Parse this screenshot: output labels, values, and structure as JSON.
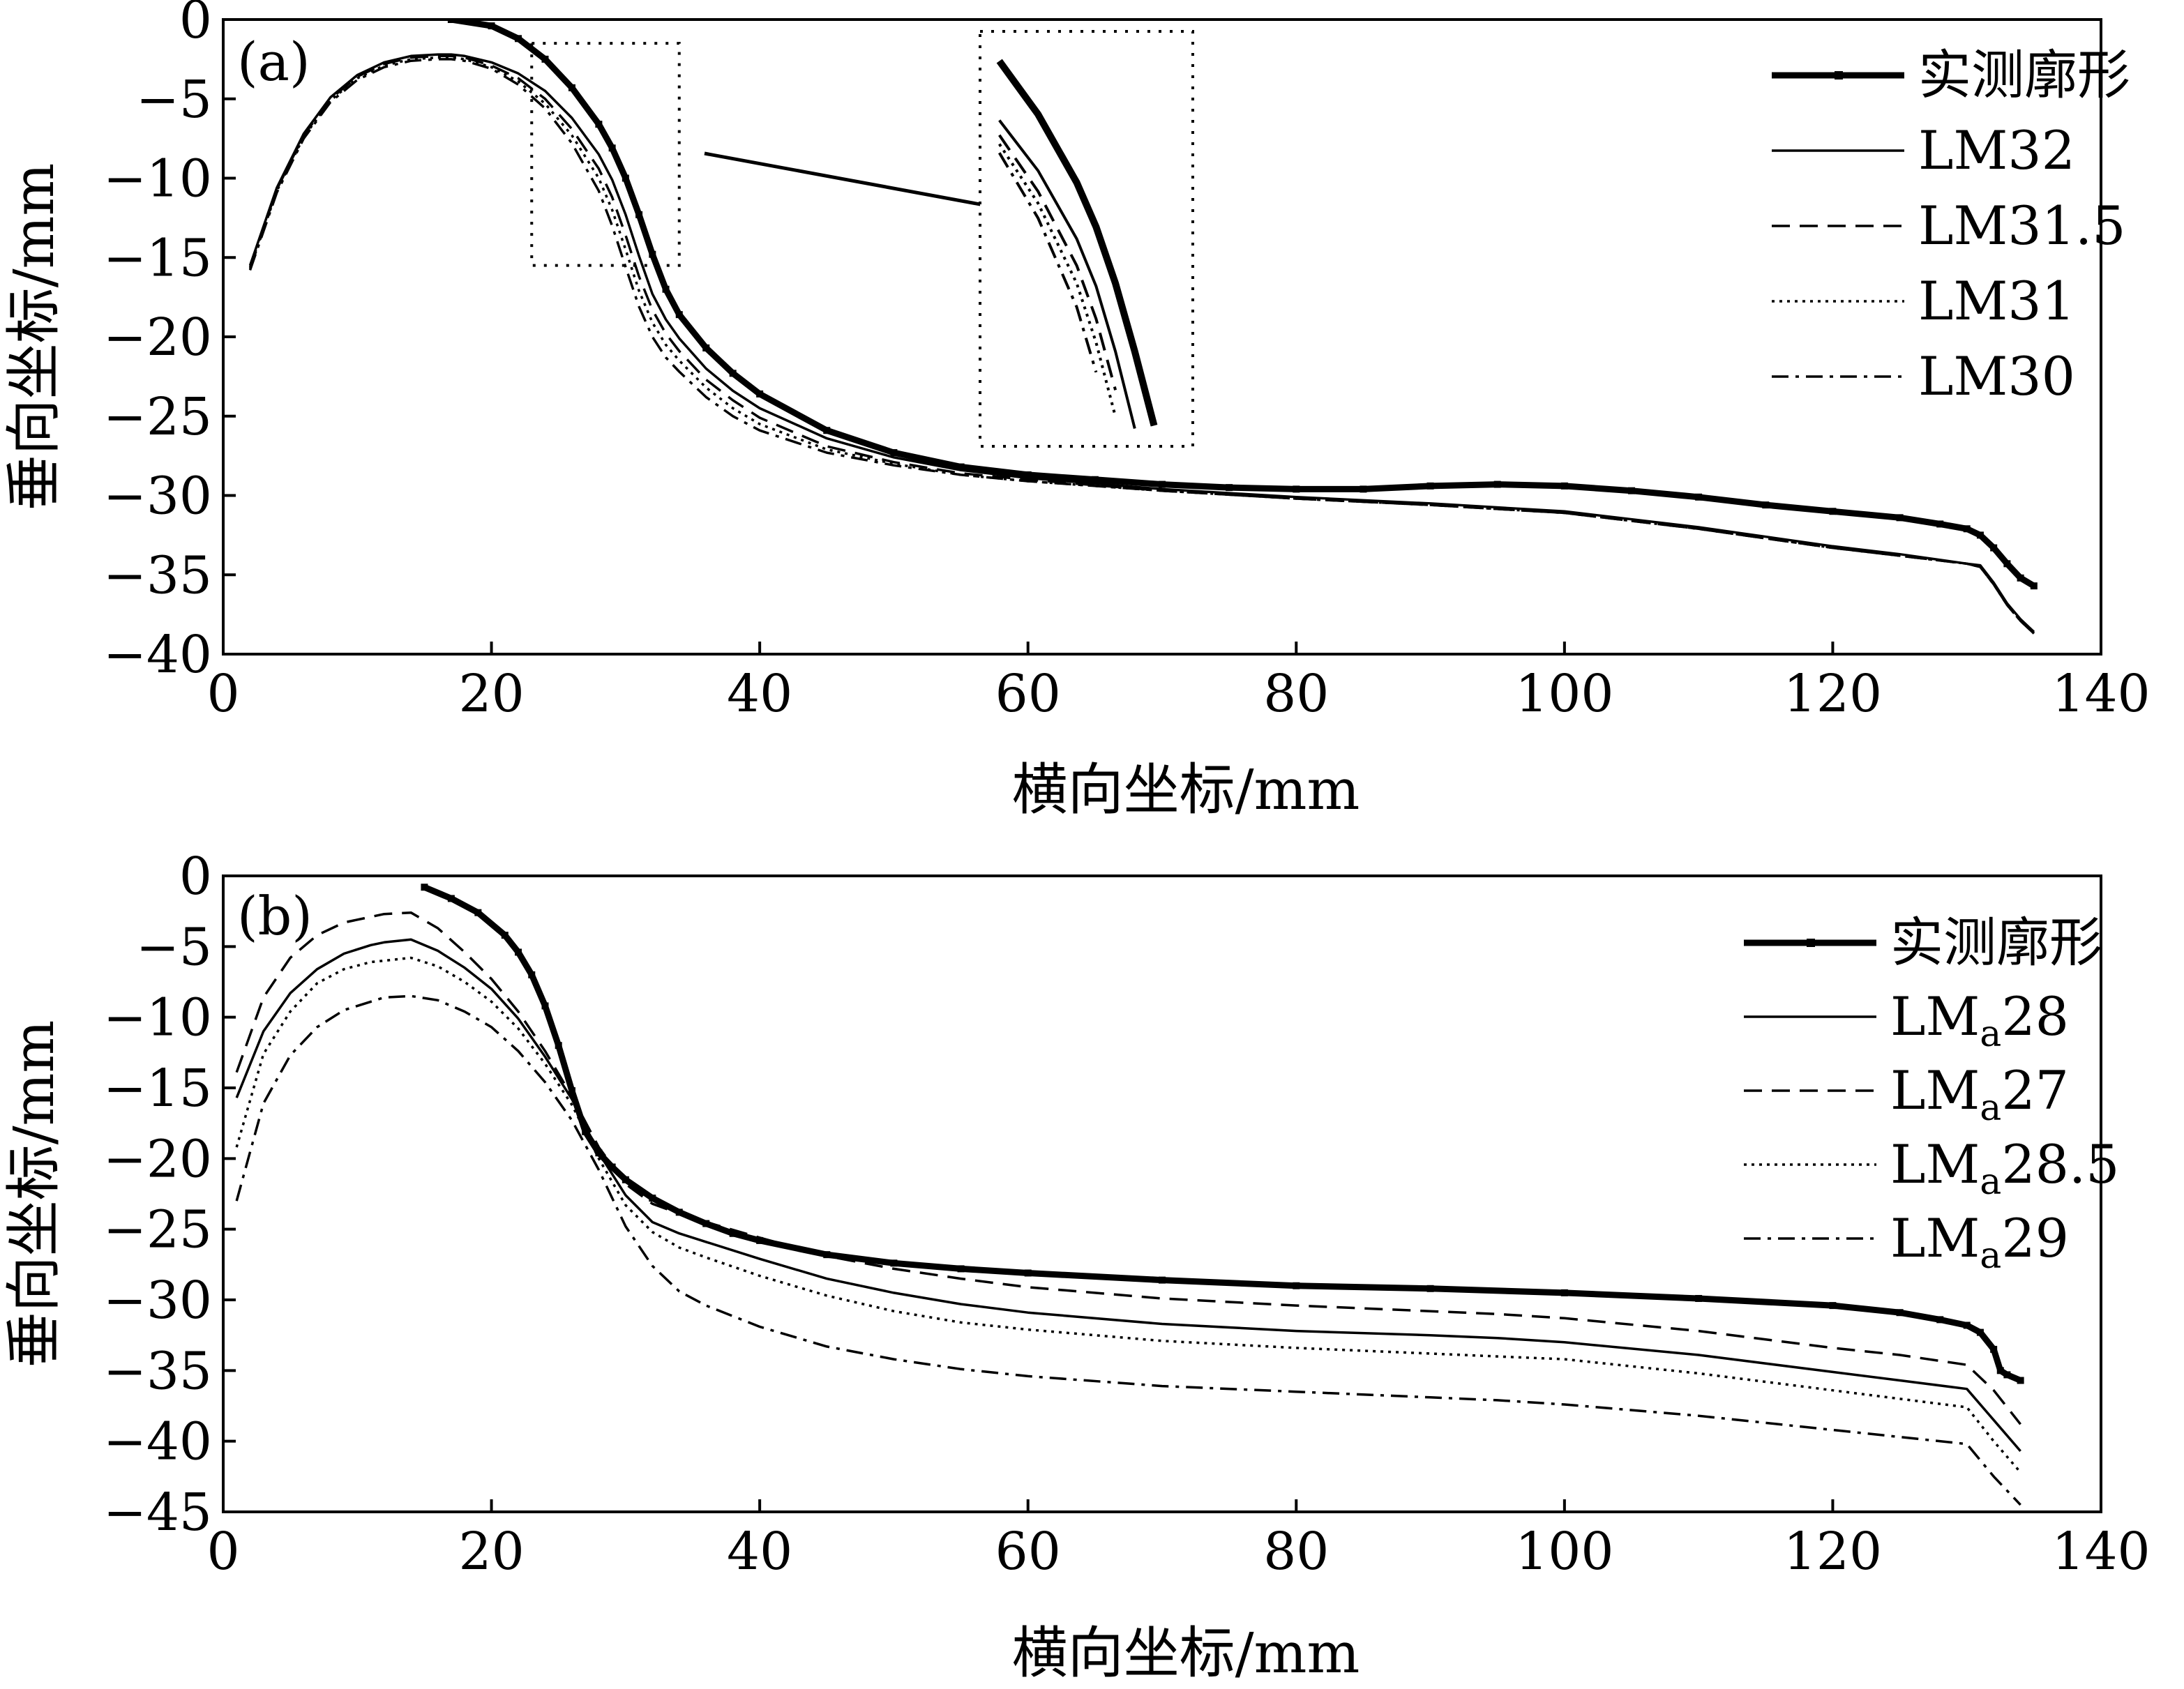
{
  "chart_data": [
    {
      "type": "line",
      "panel_label": "(a)",
      "xlabel": "横向坐标/mm",
      "ylabel": "垂向坐标/mm",
      "xlim": [
        0,
        140
      ],
      "ylim": [
        -40,
        0
      ],
      "xticks": [
        0,
        20,
        40,
        60,
        80,
        100,
        120,
        140
      ],
      "yticks": [
        0,
        -5,
        -10,
        -15,
        -20,
        -25,
        -30,
        -35,
        -40
      ],
      "grid": false,
      "legend_position": "top-right",
      "series": [
        {
          "name": "实测廓形",
          "style": "solid-thick-marker",
          "x": [
            17,
            20,
            22,
            24,
            26,
            28,
            29,
            30,
            31,
            32,
            33,
            34,
            36,
            38,
            40,
            45,
            50,
            55,
            60,
            65,
            70,
            75,
            80,
            85,
            90,
            95,
            100,
            105,
            110,
            115,
            120,
            125,
            128,
            130,
            131,
            132,
            133,
            134,
            135
          ],
          "y": [
            0,
            -0.4,
            -1.2,
            -2.5,
            -4.3,
            -6.6,
            -8.1,
            -10.0,
            -12.3,
            -14.8,
            -17.0,
            -18.6,
            -20.7,
            -22.3,
            -23.6,
            -25.9,
            -27.3,
            -28.2,
            -28.7,
            -29.0,
            -29.3,
            -29.5,
            -29.6,
            -29.6,
            -29.4,
            -29.3,
            -29.4,
            -29.7,
            -30.1,
            -30.6,
            -31.0,
            -31.4,
            -31.8,
            -32.1,
            -32.5,
            -33.3,
            -34.3,
            -35.2,
            -35.7
          ]
        },
        {
          "name": "LM32",
          "style": "solid",
          "x": [
            2,
            4,
            6,
            8,
            10,
            12,
            14,
            16,
            17,
            18,
            20,
            22,
            24,
            26,
            28,
            29,
            30,
            31,
            32,
            33,
            34,
            36,
            38,
            40,
            45,
            50,
            55,
            60,
            70,
            80,
            90,
            100,
            110,
            120,
            125,
            130,
            131,
            132,
            133,
            134,
            135
          ],
          "y": [
            -15.5,
            -10.6,
            -7.2,
            -4.9,
            -3.5,
            -2.7,
            -2.3,
            -2.2,
            -2.2,
            -2.3,
            -2.7,
            -3.4,
            -4.5,
            -6.2,
            -8.5,
            -10.1,
            -12.3,
            -14.9,
            -17.3,
            -18.9,
            -20.1,
            -22.0,
            -23.4,
            -24.5,
            -26.4,
            -27.6,
            -28.4,
            -28.9,
            -29.6,
            -30.1,
            -30.5,
            -31.0,
            -32.0,
            -33.2,
            -33.7,
            -34.3,
            -34.4,
            -35.5,
            -36.8,
            -37.8,
            -38.6
          ]
        },
        {
          "name": "LM31.5",
          "style": "dashed",
          "x": [
            2,
            4,
            6,
            8,
            10,
            12,
            14,
            16,
            17,
            18,
            20,
            22,
            24,
            26,
            28,
            29,
            30,
            31,
            32,
            33,
            34,
            36,
            38,
            40,
            45,
            50,
            55,
            60,
            70,
            80,
            90,
            100,
            110,
            120,
            125,
            130,
            131,
            132,
            133,
            134,
            135
          ],
          "y": [
            -15.6,
            -10.7,
            -7.3,
            -5.0,
            -3.6,
            -2.8,
            -2.4,
            -2.3,
            -2.3,
            -2.4,
            -2.9,
            -3.7,
            -5.0,
            -6.9,
            -9.4,
            -11.2,
            -13.6,
            -16.2,
            -18.3,
            -19.8,
            -20.9,
            -22.7,
            -24.0,
            -25.1,
            -26.9,
            -27.9,
            -28.6,
            -29.0,
            -29.7,
            -30.2,
            -30.6,
            -31.1,
            -32.1,
            -33.3,
            -33.8,
            -34.3,
            -34.5,
            -35.6,
            -36.9,
            -37.9,
            -38.7
          ]
        },
        {
          "name": "LM31",
          "style": "dotted",
          "x": [
            2,
            4,
            6,
            8,
            10,
            12,
            14,
            16,
            17,
            18,
            20,
            22,
            24,
            26,
            28,
            29,
            30,
            31,
            32,
            33,
            34,
            36,
            38,
            40,
            45,
            50,
            55,
            60,
            70,
            80,
            90,
            100,
            110,
            120,
            125,
            130,
            131,
            132,
            133,
            134,
            135
          ],
          "y": [
            -15.7,
            -10.8,
            -7.4,
            -5.1,
            -3.7,
            -2.9,
            -2.5,
            -2.4,
            -2.4,
            -2.5,
            -3.0,
            -3.9,
            -5.3,
            -7.3,
            -10.0,
            -12.0,
            -14.5,
            -17.1,
            -19.1,
            -20.5,
            -21.5,
            -23.2,
            -24.5,
            -25.5,
            -27.1,
            -28.0,
            -28.7,
            -29.1,
            -29.7,
            -30.2,
            -30.6,
            -31.1,
            -32.1,
            -33.3,
            -33.8,
            -34.3,
            -34.5,
            -35.6,
            -36.9,
            -37.9,
            -38.7
          ]
        },
        {
          "name": "LM30",
          "style": "dashdot",
          "x": [
            2,
            4,
            6,
            8,
            10,
            12,
            14,
            16,
            17,
            18,
            20,
            22,
            24,
            26,
            28,
            29,
            30,
            31,
            32,
            33,
            34,
            36,
            38,
            40,
            45,
            50,
            55,
            60,
            70,
            80,
            90,
            100,
            110,
            120,
            125,
            130,
            131,
            132,
            133,
            134,
            135
          ],
          "y": [
            -15.8,
            -10.9,
            -7.5,
            -5.2,
            -3.8,
            -3.0,
            -2.6,
            -2.5,
            -2.5,
            -2.6,
            -3.1,
            -4.1,
            -5.6,
            -7.8,
            -10.8,
            -13.0,
            -15.6,
            -18.1,
            -20.0,
            -21.3,
            -22.2,
            -23.8,
            -25.0,
            -25.9,
            -27.3,
            -28.1,
            -28.7,
            -29.1,
            -29.7,
            -30.2,
            -30.6,
            -31.1,
            -32.1,
            -33.3,
            -33.8,
            -34.3,
            -34.5,
            -35.6,
            -36.9,
            -37.9,
            -38.7
          ]
        }
      ],
      "annotations": [
        "dotted zoom box over region x 23–34, y -1.5 to -15.5",
        "arrow to inset magnified view"
      ]
    },
    {
      "type": "line",
      "panel_label": "(b)",
      "xlabel": "横向坐标/mm",
      "ylabel": "垂向坐标/mm",
      "xlim": [
        0,
        140
      ],
      "ylim": [
        -45,
        0
      ],
      "xticks": [
        0,
        20,
        40,
        60,
        80,
        100,
        120,
        140
      ],
      "yticks": [
        0,
        -5,
        -10,
        -15,
        -20,
        -25,
        -30,
        -35,
        -40,
        -45
      ],
      "grid": false,
      "legend_position": "top-right",
      "series": [
        {
          "name": "实测廓形",
          "style": "solid-thick-marker",
          "x": [
            15,
            17,
            19,
            21,
            22,
            23,
            24,
            25,
            26,
            27,
            28,
            29,
            30,
            32,
            34,
            36,
            38,
            40,
            45,
            50,
            55,
            60,
            70,
            80,
            90,
            100,
            110,
            120,
            125,
            128,
            130,
            131,
            132,
            132.5,
            133,
            134
          ],
          "y": [
            -0.8,
            -1.6,
            -2.6,
            -4.2,
            -5.4,
            -7.0,
            -9.2,
            -12.0,
            -15.2,
            -18.1,
            -19.6,
            -20.6,
            -21.5,
            -22.8,
            -23.8,
            -24.6,
            -25.3,
            -25.8,
            -26.8,
            -27.4,
            -27.8,
            -28.1,
            -28.6,
            -29.0,
            -29.2,
            -29.5,
            -29.9,
            -30.4,
            -30.9,
            -31.4,
            -31.8,
            -32.3,
            -33.5,
            -35.0,
            -35.3,
            -35.7
          ]
        },
        {
          "name": "LMa28",
          "base": "LM",
          "sub": "a",
          "suffix": "28",
          "style": "solid",
          "x": [
            1,
            3,
            5,
            7,
            9,
            11,
            12,
            14,
            16,
            18,
            20,
            22,
            24,
            26,
            28,
            30,
            32,
            34,
            36,
            40,
            45,
            50,
            55,
            60,
            70,
            80,
            90,
            95,
            100,
            110,
            120,
            125,
            130,
            132,
            134
          ],
          "y": [
            -15.7,
            -11.0,
            -8.3,
            -6.6,
            -5.5,
            -4.9,
            -4.7,
            -4.5,
            -5.3,
            -6.5,
            -8.0,
            -10.1,
            -12.8,
            -15.8,
            -19.6,
            -22.6,
            -24.5,
            -25.3,
            -25.9,
            -27.1,
            -28.5,
            -29.5,
            -30.3,
            -30.9,
            -31.7,
            -32.2,
            -32.5,
            -32.7,
            -33.0,
            -33.9,
            -35.1,
            -35.7,
            -36.3,
            -38.5,
            -40.7
          ]
        },
        {
          "name": "LMa27",
          "base": "LM",
          "sub": "a",
          "suffix": "27",
          "style": "dashed",
          "x": [
            1,
            3,
            5,
            7,
            9,
            11,
            12,
            14,
            16,
            18,
            20,
            22,
            24,
            26,
            28,
            30,
            32,
            34,
            36,
            40,
            45,
            50,
            55,
            60,
            70,
            80,
            90,
            95,
            100,
            110,
            120,
            125,
            130,
            132,
            134
          ],
          "y": [
            -13.9,
            -8.6,
            -5.8,
            -4.2,
            -3.3,
            -2.9,
            -2.7,
            -2.6,
            -3.7,
            -5.4,
            -7.3,
            -9.6,
            -12.4,
            -15.6,
            -19.2,
            -21.8,
            -23.2,
            -23.9,
            -24.5,
            -25.6,
            -26.9,
            -27.8,
            -28.5,
            -29.1,
            -29.9,
            -30.4,
            -30.8,
            -31.0,
            -31.3,
            -32.2,
            -33.4,
            -33.9,
            -34.6,
            -36.4,
            -38.8
          ]
        },
        {
          "name": "LMa28.5",
          "base": "LM",
          "sub": "a",
          "suffix": "28.5",
          "style": "dotted",
          "x": [
            1,
            3,
            5,
            7,
            9,
            11,
            12,
            14,
            16,
            18,
            20,
            22,
            24,
            26,
            28,
            30,
            32,
            34,
            36,
            40,
            45,
            50,
            55,
            60,
            70,
            80,
            90,
            95,
            100,
            110,
            120,
            125,
            130,
            132,
            134
          ],
          "y": [
            -19.2,
            -12.6,
            -9.6,
            -7.6,
            -6.6,
            -6.1,
            -6.0,
            -5.8,
            -6.4,
            -7.5,
            -8.9,
            -10.8,
            -13.3,
            -16.2,
            -20.0,
            -23.3,
            -25.2,
            -26.3,
            -27.0,
            -28.3,
            -29.7,
            -30.8,
            -31.6,
            -32.1,
            -32.9,
            -33.4,
            -33.8,
            -34.0,
            -34.2,
            -35.2,
            -36.4,
            -37.0,
            -37.6,
            -40.0,
            -42.2
          ]
        },
        {
          "name": "LMa29",
          "base": "LM",
          "sub": "a",
          "suffix": "29",
          "style": "dashdot",
          "x": [
            1,
            3,
            5,
            7,
            9,
            11,
            12,
            14,
            16,
            18,
            20,
            22,
            24,
            26,
            28,
            30,
            32,
            34,
            36,
            40,
            45,
            50,
            55,
            60,
            70,
            80,
            90,
            95,
            100,
            110,
            120,
            125,
            130,
            132,
            134
          ],
          "y": [
            -23.0,
            -16.1,
            -12.7,
            -10.7,
            -9.5,
            -8.9,
            -8.6,
            -8.5,
            -8.8,
            -9.6,
            -10.7,
            -12.4,
            -14.6,
            -17.3,
            -20.8,
            -24.8,
            -27.6,
            -29.4,
            -30.4,
            -31.9,
            -33.3,
            -34.2,
            -34.9,
            -35.4,
            -36.1,
            -36.5,
            -36.9,
            -37.1,
            -37.4,
            -38.2,
            -39.2,
            -39.7,
            -40.2,
            -42.5,
            -44.5
          ]
        }
      ]
    }
  ]
}
